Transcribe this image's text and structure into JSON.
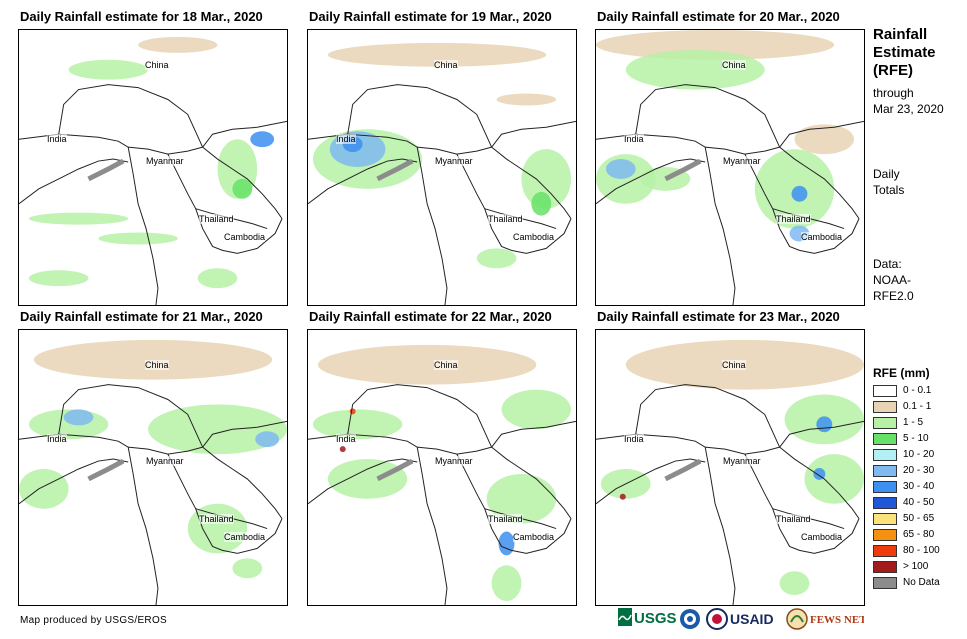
{
  "panels": [
    {
      "title": "Daily Rainfall estimate for 18 Mar., 2020"
    },
    {
      "title": "Daily Rainfall estimate for 19 Mar., 2020"
    },
    {
      "title": "Daily Rainfall estimate for 20 Mar., 2020"
    },
    {
      "title": "Daily Rainfall estimate for 21 Mar., 2020"
    },
    {
      "title": "Daily Rainfall estimate for 22 Mar., 2020"
    },
    {
      "title": "Daily Rainfall estimate for 23 Mar., 2020"
    }
  ],
  "map_labels": {
    "china": "China",
    "india": "India",
    "myanmar": "Myanmar",
    "thailand": "Thailand",
    "cambodia": "Cambodia"
  },
  "sidebar": {
    "title_line1": "Rainfall",
    "title_line2": "Estimate",
    "title_line3": "(RFE)",
    "through_label": "through",
    "through_date": "Mar 23, 2020",
    "totals_line1": "Daily",
    "totals_line2": "Totals",
    "data_line1": "Data:",
    "data_line2": "NOAA-",
    "data_line3": "RFE2.0"
  },
  "legend": {
    "title": "RFE (mm)",
    "items": [
      {
        "label": "0 - 0.1",
        "color": "#ffffff"
      },
      {
        "label": "0.1 - 1",
        "color": "#e8d3b4"
      },
      {
        "label": "1 - 5",
        "color": "#b6f1a6"
      },
      {
        "label": "5 - 10",
        "color": "#66e066"
      },
      {
        "label": "10 - 20",
        "color": "#b2f0f5"
      },
      {
        "label": "20 - 30",
        "color": "#7fb9f0"
      },
      {
        "label": "30 - 40",
        "color": "#3d8ff0"
      },
      {
        "label": "40 - 50",
        "color": "#1f57d8"
      },
      {
        "label": "50 - 65",
        "color": "#fbe27a"
      },
      {
        "label": "65 - 80",
        "color": "#f59010"
      },
      {
        "label": "80 - 100",
        "color": "#f03c0c"
      },
      {
        "label": "> 100",
        "color": "#a21a1a"
      },
      {
        "label": "No Data",
        "color": "#8c8c8c"
      }
    ]
  },
  "credit": "Map produced by USGS/EROS",
  "logos": {
    "usgs": "USGS",
    "usaid": "USAID",
    "fewsnet": "FEWS NET"
  }
}
